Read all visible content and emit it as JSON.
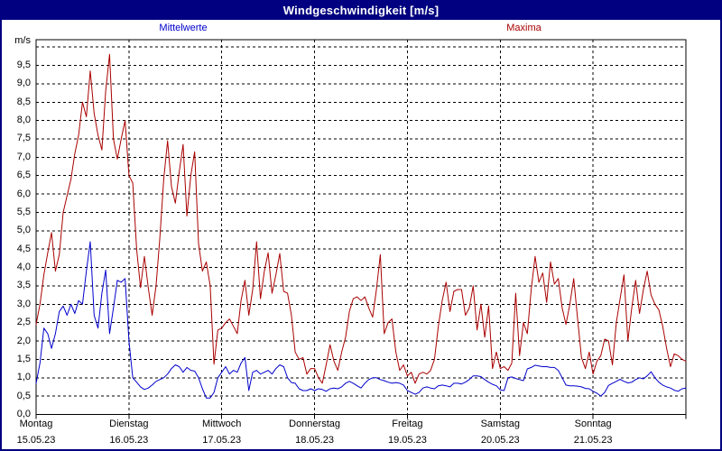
{
  "header": {
    "title": "Windgeschwindigkeit [m/s]"
  },
  "legend": [
    {
      "label": "Mittelwerte",
      "color": "#0000cc"
    },
    {
      "label": "Maxima",
      "color": "#aa0000"
    }
  ],
  "y_axis": {
    "unit_label": "m/s",
    "tick_labels": [
      "0,0",
      "0,5",
      "1,0",
      "1,5",
      "2,0",
      "2,5",
      "3,0",
      "3,5",
      "4,0",
      "4,5",
      "5,0",
      "5,5",
      "6,0",
      "6,5",
      "7,0",
      "7,5",
      "8,0",
      "8,5",
      "9,0",
      "9,5"
    ]
  },
  "x_axis": {
    "days": [
      {
        "name": "Montag",
        "date": "15.05.23"
      },
      {
        "name": "Dienstag",
        "date": "16.05.23"
      },
      {
        "name": "Mittwoch",
        "date": "17.05.23"
      },
      {
        "name": "Donnerstag",
        "date": "18.05.23"
      },
      {
        "name": "Freitag",
        "date": "19.05.23"
      },
      {
        "name": "Samstag",
        "date": "20.05.23"
      },
      {
        "name": "Sonntag",
        "date": "21.05.23"
      }
    ]
  },
  "chart_data": {
    "type": "line",
    "title": "Windgeschwindigkeit [m/s]",
    "ylabel": "m/s",
    "x_unit": "hours",
    "x_range_hours": [
      0,
      168
    ],
    "ylim": [
      0,
      10.2
    ],
    "grid_step": 0.5,
    "grid": "dashed",
    "legend_position": "top",
    "series": [
      {
        "name": "Mittelwerte",
        "color": "#0000cc",
        "values": [
          0.85,
          1.4,
          2.35,
          2.2,
          1.8,
          2.2,
          2.8,
          2.95,
          2.7,
          3.0,
          2.75,
          3.1,
          3.0,
          3.9,
          4.7,
          2.7,
          2.35,
          3.3,
          3.93,
          2.2,
          2.9,
          3.65,
          3.6,
          3.7,
          2.0,
          1.0,
          0.88,
          0.75,
          0.68,
          0.72,
          0.8,
          0.9,
          0.95,
          1.0,
          1.1,
          1.25,
          1.35,
          1.3,
          1.15,
          1.28,
          1.2,
          1.18,
          1.0,
          0.7,
          0.45,
          0.45,
          0.6,
          1.0,
          1.15,
          1.3,
          1.1,
          1.2,
          1.15,
          1.4,
          1.55,
          0.65,
          1.15,
          1.2,
          1.1,
          1.15,
          1.2,
          1.1,
          1.25,
          1.35,
          1.3,
          1.0,
          0.87,
          0.85,
          0.7,
          0.65,
          0.65,
          0.7,
          0.65,
          0.7,
          0.68,
          0.63,
          0.7,
          0.72,
          0.7,
          0.75,
          0.85,
          0.9,
          0.85,
          0.78,
          0.72,
          0.85,
          0.95,
          1.0,
          1.0,
          0.95,
          0.92,
          0.88,
          0.85,
          0.87,
          0.85,
          0.8,
          0.65,
          0.6,
          0.55,
          0.6,
          0.72,
          0.75,
          0.72,
          0.7,
          0.78,
          0.8,
          0.78,
          0.75,
          0.85,
          0.85,
          0.83,
          0.88,
          0.95,
          1.05,
          1.05,
          1.03,
          0.95,
          0.88,
          0.82,
          0.78,
          0.67,
          0.65,
          1.0,
          1.02,
          0.98,
          0.95,
          0.92,
          1.24,
          1.28,
          1.34,
          1.32,
          1.3,
          1.3,
          1.28,
          1.28,
          1.2,
          1.0,
          0.8,
          0.78,
          0.78,
          0.77,
          0.75,
          0.71,
          0.7,
          0.63,
          0.58,
          0.5,
          0.6,
          0.79,
          0.85,
          0.9,
          0.96,
          0.9,
          0.86,
          0.88,
          0.95,
          1.0,
          0.97,
          1.05,
          1.16,
          1.0,
          0.88,
          0.8,
          0.75,
          0.72,
          0.66,
          0.63,
          0.7,
          0.72
        ]
      },
      {
        "name": "Maxima",
        "color": "#aa0000",
        "values": [
          2.45,
          3.0,
          3.8,
          4.4,
          4.95,
          3.9,
          4.35,
          5.5,
          5.95,
          6.4,
          7.1,
          7.6,
          8.5,
          8.1,
          9.35,
          8.2,
          7.6,
          7.2,
          8.8,
          9.8,
          7.5,
          6.95,
          7.5,
          8.0,
          6.5,
          6.3,
          4.5,
          3.45,
          4.3,
          3.45,
          2.7,
          3.5,
          4.8,
          6.4,
          7.45,
          6.2,
          5.75,
          6.6,
          7.35,
          5.4,
          6.5,
          7.15,
          4.65,
          3.9,
          4.15,
          3.5,
          1.37,
          2.3,
          2.35,
          2.5,
          2.6,
          2.4,
          2.2,
          3.1,
          3.65,
          2.7,
          3.4,
          4.7,
          3.15,
          3.9,
          4.4,
          3.3,
          3.8,
          4.38,
          3.35,
          3.3,
          2.7,
          1.7,
          1.5,
          1.55,
          1.1,
          1.25,
          1.25,
          1.0,
          0.85,
          1.35,
          1.9,
          1.45,
          1.2,
          1.7,
          2.1,
          2.8,
          3.15,
          3.2,
          3.1,
          3.2,
          2.9,
          2.65,
          3.4,
          4.35,
          2.2,
          2.5,
          2.6,
          1.7,
          1.2,
          1.35,
          1.05,
          1.15,
          0.85,
          1.1,
          1.15,
          1.1,
          1.2,
          1.5,
          2.4,
          3.1,
          3.6,
          2.8,
          3.35,
          3.4,
          3.4,
          2.7,
          2.9,
          3.5,
          2.3,
          3.0,
          2.1,
          2.95,
          1.25,
          1.7,
          1.25,
          1.3,
          1.2,
          1.4,
          3.3,
          1.6,
          2.5,
          2.2,
          3.4,
          4.3,
          3.6,
          3.85,
          3.05,
          4.15,
          3.55,
          3.7,
          2.9,
          2.45,
          3.0,
          3.7,
          2.6,
          1.55,
          1.25,
          1.7,
          1.1,
          1.45,
          1.6,
          2.05,
          2.0,
          1.35,
          2.5,
          3.15,
          3.8,
          2.0,
          2.9,
          3.65,
          2.75,
          3.4,
          3.9,
          3.25,
          3.0,
          2.85,
          2.4,
          1.8,
          1.3,
          1.65,
          1.6,
          1.5,
          1.45
        ]
      }
    ],
    "colors": {
      "frame": "#000000",
      "grid": "#000000",
      "titlebar_bg": "#000080",
      "titlebar_text": "#ffffff",
      "border": "#000080"
    }
  }
}
